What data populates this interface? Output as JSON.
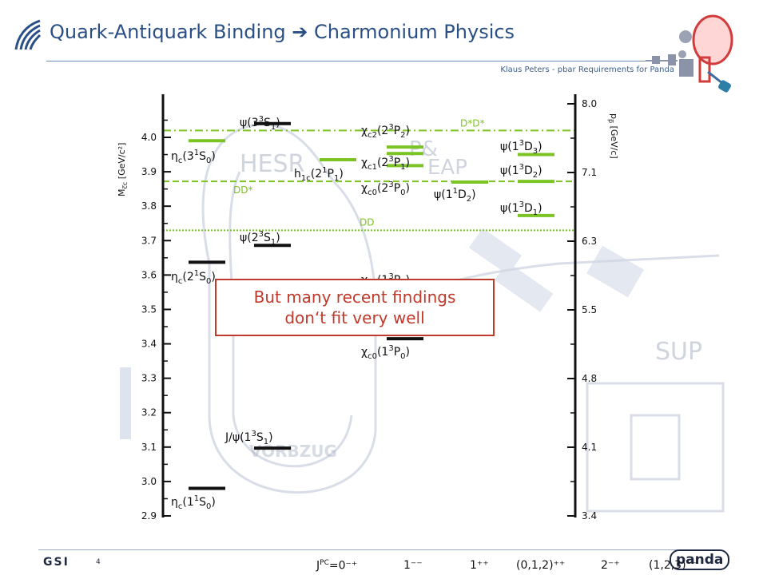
{
  "header": {
    "title": "Quark-Antiquark Binding ➔ Charmonium Physics",
    "subtitle": "Klaus Peters - pbar Requirements for Panda"
  },
  "background_labels": {
    "hesr": "HESR",
    "pp_heap": "P&",
    "heap": "EAP",
    "sup": "SUP",
    "vor": "VORBZUG"
  },
  "axis_left": {
    "title": "M",
    "title_sub": "c̅c",
    "title_unit": " [GeV/c²]",
    "ticks": [
      "2.9",
      "3.0",
      "3.1",
      "3.2",
      "3.3",
      "3.4",
      "3.5",
      "3.6",
      "3.7",
      "3.8",
      "3.9",
      "4.0"
    ],
    "range": [
      2.9,
      4.1
    ]
  },
  "axis_right": {
    "title": "p",
    "title_sub": "p̅",
    "title_unit": " [GeV/c]",
    "ticks": [
      "3.4",
      "4.1",
      "4.8",
      "5.5",
      "6.3",
      "7.1",
      "8.0"
    ]
  },
  "thresholds": [
    {
      "name": "D*D*",
      "mass": 4.02
    },
    {
      "name": "DD*",
      "mass": 3.872
    },
    {
      "name": "DD",
      "mass": 3.73
    }
  ],
  "states": [
    {
      "name": "eta_c_1S",
      "label": "η",
      "sub": "c",
      "mid": "(1",
      "sup1": "1",
      "core": "S",
      "sub2": "0",
      "end": ")",
      "mass": 2.98,
      "column": 0,
      "color": "#111111"
    },
    {
      "name": "eta_c_2S",
      "label": "η",
      "sub": "c",
      "mid": "(2",
      "sup1": "1",
      "core": "S",
      "sub2": "0",
      "end": ")",
      "mass": 3.637,
      "column": 0,
      "color": "#111111"
    },
    {
      "name": "eta_c_3S",
      "label": "η",
      "sub": "c",
      "mid": "(3",
      "sup1": "1",
      "core": "S",
      "sub2": "0",
      "end": ")",
      "mass": 3.99,
      "column": 0,
      "color": "#7cc424"
    },
    {
      "name": "jpsi_1S",
      "label": "J/ψ",
      "sub": "",
      "mid": "(1",
      "sup1": "3",
      "core": "S",
      "sub2": "1",
      "end": ")",
      "mass": 3.097,
      "column": 1,
      "color": "#111111"
    },
    {
      "name": "psi_2S",
      "label": "ψ",
      "sub": "",
      "mid": "(2",
      "sup1": "3",
      "core": "S",
      "sub2": "1",
      "end": ")",
      "mass": 3.686,
      "column": 1,
      "color": "#111111"
    },
    {
      "name": "psi_3S",
      "label": "ψ",
      "sub": "",
      "mid": "(3",
      "sup1": "3",
      "core": "S",
      "sub2": "1",
      "end": ")",
      "mass": 4.04,
      "column": 1,
      "color": "#111111"
    },
    {
      "name": "h1c_2P",
      "label": "h",
      "sub": "1c",
      "mid": "(2",
      "sup1": "1",
      "core": "P",
      "sub2": "1",
      "end": ")",
      "mass": 3.935,
      "column": 2,
      "color": "#7cc424"
    },
    {
      "name": "chi_c0_1P",
      "label": "χ",
      "sub": "c0",
      "mid": "(1",
      "sup1": "3",
      "core": "P",
      "sub2": "0",
      "end": ")",
      "mass": 3.415,
      "column": 3,
      "color": "#111111"
    },
    {
      "name": "chi_c1_1P",
      "label": "χ",
      "sub": "c1",
      "mid": "(1",
      "sup1": "3",
      "core": "P",
      "sub2": "1",
      "end": ")",
      "mass": 3.511,
      "column": 3,
      "color": "#111111"
    },
    {
      "name": "chi_c0_2P",
      "label": "χ",
      "sub": "c0",
      "mid": "(2",
      "sup1": "3",
      "core": "P",
      "sub2": "0",
      "end": ")",
      "mass": 3.918,
      "column": 3,
      "color": "#7cc424"
    },
    {
      "name": "chi_c1_2P",
      "label": "χ",
      "sub": "c1",
      "mid": "(2",
      "sup1": "3",
      "core": "P",
      "sub2": "1",
      "end": ")",
      "mass": 3.953,
      "column": 3,
      "color": "#7cc424"
    },
    {
      "name": "chi_c2_2P",
      "label": "χ",
      "sub": "c2",
      "mid": "(2",
      "sup1": "3",
      "core": "P",
      "sub2": "2",
      "end": ")",
      "mass": 3.972,
      "column": 3,
      "color": "#7cc424"
    },
    {
      "name": "psi_1D2",
      "label": "ψ",
      "sub": "",
      "mid": "(1",
      "sup1": "1",
      "core": "D",
      "sub2": "2",
      "end": ")",
      "mass": 3.87,
      "column": 4,
      "color": "#7cc424"
    },
    {
      "name": "psi_1D1",
      "label": "ψ",
      "sub": "",
      "mid": "(1",
      "sup1": "3",
      "core": "D",
      "sub2": "1",
      "end": ")",
      "mass": 3.773,
      "column": 5,
      "color": "#7cc424"
    },
    {
      "name": "psi_1D2b",
      "label": "ψ",
      "sub": "",
      "mid": "(1",
      "sup1": "3",
      "core": "D",
      "sub2": "2",
      "end": ")",
      "mass": 3.872,
      "column": 5,
      "color": "#7cc424"
    },
    {
      "name": "psi_1D3",
      "label": "ψ",
      "sub": "",
      "mid": "(1",
      "sup1": "3",
      "core": "D",
      "sub2": "3",
      "end": ")",
      "mass": 3.95,
      "column": 5,
      "color": "#7cc424"
    }
  ],
  "state_labels": {
    "eta_c_1S": "ηc(1¹S₀)",
    "eta_c_2S": "ηc(2¹S₀)",
    "eta_c_3S": "ηc(3¹S₀)",
    "jpsi_1S": "J/ψ(1³S₁)",
    "psi_2S": "ψ(2³S₁)",
    "psi_3S": "ψ(3³S₁)",
    "h1c_2P": "h1c(2¹P₁)",
    "chi_c0_1P": "χc0(1³P₀)",
    "chi_c1_1P": "χc1(1³P₁)",
    "chi_c0_2P": "χc0(2³P₀)",
    "chi_c1_2P": "χc1(2³P₁)",
    "chi_c2_2P": "χc2(2³P₂)",
    "psi_1D2": "ψ(1¹D₂)",
    "psi_1D1": "ψ(1³D₁)",
    "psi_1D2b": "ψ(1³D₂)",
    "psi_1D3": "ψ(1³D₃)"
  },
  "callout": {
    "line1": "But many recent findings",
    "line2": "don‘t fit very well"
  },
  "footer": {
    "jpc_prefix": "J",
    "jpc_labels": [
      "=0⁻⁺",
      "1⁻⁻",
      "1⁺⁺",
      "(0,1,2)⁺⁺",
      "2⁻⁺",
      "(1,2,3)⁻⁻"
    ],
    "page": "4",
    "gsi": "GSI",
    "panda": "panda"
  },
  "colors": {
    "title": "#2a4f86",
    "green": "#7cc424",
    "callout_border": "#c0392b",
    "background_drawing": "#b9c3d6"
  }
}
